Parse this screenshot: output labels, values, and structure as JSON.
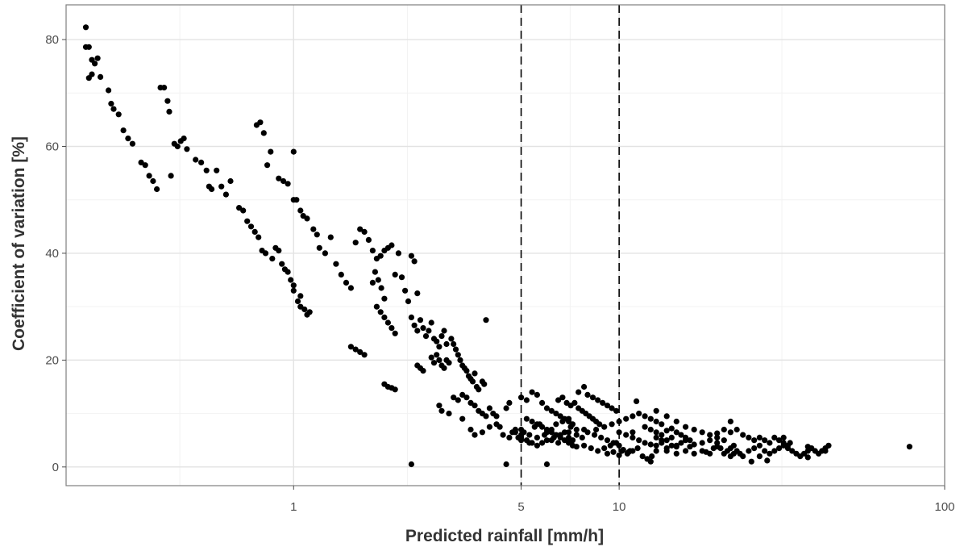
{
  "chart_data": {
    "type": "scatter",
    "xlabel": "Predicted rainfall [mm/h]",
    "ylabel": "Coefficient of variation [%]",
    "x_scale": "log10",
    "xlim": [
      0.2,
      100
    ],
    "ylim": [
      -3.5,
      86.5
    ],
    "x_ticks": [
      1,
      5,
      10,
      100
    ],
    "x_tick_labels": [
      "1",
      "5",
      "10",
      "100"
    ],
    "y_ticks": [
      0,
      20,
      40,
      60,
      80
    ],
    "y_tick_labels": [
      "0",
      "20",
      "40",
      "60",
      "80"
    ],
    "reference_lines_x": [
      5,
      10
    ],
    "grid": true,
    "point_color": "#000000",
    "points": [
      [
        0.23,
        82.3
      ],
      [
        0.23,
        78.6
      ],
      [
        0.235,
        78.6
      ],
      [
        0.24,
        76.2
      ],
      [
        0.245,
        75.5
      ],
      [
        0.24,
        73.5
      ],
      [
        0.235,
        72.8
      ],
      [
        0.25,
        76.5
      ],
      [
        0.255,
        73.0
      ],
      [
        0.27,
        70.5
      ],
      [
        0.275,
        68.0
      ],
      [
        0.28,
        67.0
      ],
      [
        0.29,
        66.0
      ],
      [
        0.3,
        63.0
      ],
      [
        0.31,
        61.5
      ],
      [
        0.32,
        60.5
      ],
      [
        0.34,
        57.0
      ],
      [
        0.35,
        56.5
      ],
      [
        0.36,
        54.5
      ],
      [
        0.37,
        53.5
      ],
      [
        0.38,
        52.0
      ],
      [
        0.39,
        71.0
      ],
      [
        0.4,
        71.0
      ],
      [
        0.41,
        68.5
      ],
      [
        0.415,
        66.5
      ],
      [
        0.42,
        54.5
      ],
      [
        0.43,
        60.5
      ],
      [
        0.44,
        60.0
      ],
      [
        0.45,
        61.0
      ],
      [
        0.46,
        61.5
      ],
      [
        0.47,
        59.5
      ],
      [
        0.5,
        57.5
      ],
      [
        0.52,
        57.0
      ],
      [
        0.54,
        55.5
      ],
      [
        0.55,
        52.5
      ],
      [
        0.56,
        52.0
      ],
      [
        0.58,
        55.5
      ],
      [
        0.6,
        52.5
      ],
      [
        0.62,
        51.0
      ],
      [
        0.64,
        53.5
      ],
      [
        0.68,
        48.5
      ],
      [
        0.7,
        48.0
      ],
      [
        0.72,
        46.0
      ],
      [
        0.74,
        45.0
      ],
      [
        0.76,
        44.0
      ],
      [
        0.78,
        43.0
      ],
      [
        0.77,
        64.0
      ],
      [
        0.79,
        64.5
      ],
      [
        0.81,
        62.5
      ],
      [
        0.83,
        56.5
      ],
      [
        0.85,
        59.0
      ],
      [
        0.8,
        40.5
      ],
      [
        0.82,
        40.0
      ],
      [
        0.86,
        39.0
      ],
      [
        0.88,
        41.0
      ],
      [
        0.9,
        40.5
      ],
      [
        0.92,
        38.0
      ],
      [
        0.94,
        37.0
      ],
      [
        0.96,
        36.5
      ],
      [
        0.98,
        35.0
      ],
      [
        1.0,
        33.0
      ],
      [
        0.9,
        54.0
      ],
      [
        0.93,
        53.5
      ],
      [
        0.96,
        53.0
      ],
      [
        1.0,
        50.0
      ],
      [
        1.02,
        50.0
      ],
      [
        1.05,
        48.0
      ],
      [
        1.07,
        47.0
      ],
      [
        1.1,
        46.5
      ],
      [
        1.15,
        44.5
      ],
      [
        1.18,
        43.5
      ],
      [
        1.0,
        59.0
      ],
      [
        1.03,
        31.0
      ],
      [
        1.05,
        30.0
      ],
      [
        1.08,
        29.5
      ],
      [
        1.1,
        28.5
      ],
      [
        1.12,
        29.0
      ],
      [
        1.0,
        34.0
      ],
      [
        1.05,
        32.0
      ],
      [
        1.2,
        41.0
      ],
      [
        1.25,
        40.0
      ],
      [
        1.3,
        43.0
      ],
      [
        1.35,
        38.0
      ],
      [
        1.4,
        36.0
      ],
      [
        1.45,
        34.5
      ],
      [
        1.5,
        33.5
      ],
      [
        1.55,
        42.0
      ],
      [
        1.6,
        44.5
      ],
      [
        1.65,
        44.0
      ],
      [
        1.7,
        42.5
      ],
      [
        1.75,
        40.5
      ],
      [
        1.8,
        39.0
      ],
      [
        1.85,
        39.5
      ],
      [
        1.9,
        40.5
      ],
      [
        1.95,
        41.0
      ],
      [
        2.0,
        41.5
      ],
      [
        2.05,
        36.0
      ],
      [
        2.1,
        40.0
      ],
      [
        2.15,
        35.5
      ],
      [
        2.2,
        33.0
      ],
      [
        2.25,
        31.0
      ],
      [
        2.3,
        39.5
      ],
      [
        2.35,
        38.5
      ],
      [
        2.4,
        32.5
      ],
      [
        1.5,
        22.5
      ],
      [
        1.55,
        22.0
      ],
      [
        1.6,
        21.5
      ],
      [
        1.65,
        21.0
      ],
      [
        1.8,
        30.0
      ],
      [
        1.85,
        29.0
      ],
      [
        1.9,
        28.0
      ],
      [
        1.95,
        27.0
      ],
      [
        2.0,
        26.0
      ],
      [
        2.05,
        25.0
      ],
      [
        1.75,
        34.5
      ],
      [
        1.78,
        36.5
      ],
      [
        1.82,
        35.0
      ],
      [
        1.86,
        33.5
      ],
      [
        1.9,
        31.5
      ],
      [
        1.9,
        15.5
      ],
      [
        1.95,
        15.0
      ],
      [
        2.0,
        14.8
      ],
      [
        2.05,
        14.5
      ],
      [
        2.3,
        28.0
      ],
      [
        2.35,
        26.5
      ],
      [
        2.4,
        25.5
      ],
      [
        2.45,
        27.5
      ],
      [
        2.5,
        26.0
      ],
      [
        2.55,
        24.5
      ],
      [
        2.6,
        25.5
      ],
      [
        2.65,
        27.0
      ],
      [
        2.7,
        24.0
      ],
      [
        2.75,
        23.5
      ],
      [
        2.8,
        22.5
      ],
      [
        2.85,
        24.5
      ],
      [
        2.9,
        25.5
      ],
      [
        2.95,
        23.0
      ],
      [
        2.4,
        19.0
      ],
      [
        2.45,
        18.5
      ],
      [
        2.5,
        18.0
      ],
      [
        2.3,
        0.5
      ],
      [
        2.65,
        20.5
      ],
      [
        2.7,
        19.5
      ],
      [
        2.75,
        21.0
      ],
      [
        2.8,
        20.0
      ],
      [
        2.85,
        19.0
      ],
      [
        2.9,
        18.5
      ],
      [
        2.95,
        20.0
      ],
      [
        3.0,
        19.5
      ],
      [
        3.05,
        24.0
      ],
      [
        3.1,
        23.0
      ],
      [
        3.15,
        22.0
      ],
      [
        3.2,
        21.0
      ],
      [
        3.25,
        20.0
      ],
      [
        3.3,
        19.0
      ],
      [
        3.35,
        18.5
      ],
      [
        3.4,
        18.0
      ],
      [
        3.45,
        17.0
      ],
      [
        3.5,
        16.5
      ],
      [
        3.55,
        16.0
      ],
      [
        3.6,
        17.5
      ],
      [
        3.65,
        15.0
      ],
      [
        3.7,
        14.5
      ],
      [
        3.8,
        16.0
      ],
      [
        3.85,
        15.5
      ],
      [
        3.9,
        27.5
      ],
      [
        3.1,
        13.0
      ],
      [
        3.2,
        12.5
      ],
      [
        3.3,
        13.5
      ],
      [
        3.4,
        13.0
      ],
      [
        3.5,
        12.0
      ],
      [
        3.6,
        11.5
      ],
      [
        3.7,
        10.5
      ],
      [
        3.8,
        10.0
      ],
      [
        3.9,
        9.5
      ],
      [
        4.0,
        11.0
      ],
      [
        2.8,
        11.5
      ],
      [
        2.85,
        10.5
      ],
      [
        4.1,
        10.0
      ],
      [
        4.2,
        9.5
      ],
      [
        4.3,
        7.5
      ],
      [
        4.5,
        11.0
      ],
      [
        4.6,
        12.0
      ],
      [
        4.7,
        6.5
      ],
      [
        4.8,
        7.0
      ],
      [
        4.9,
        5.5
      ],
      [
        5.0,
        6.0
      ],
      [
        4.5,
        0.5
      ],
      [
        5.0,
        13.0
      ],
      [
        5.2,
        12.5
      ],
      [
        5.4,
        14.0
      ],
      [
        5.6,
        13.5
      ],
      [
        5.8,
        12.0
      ],
      [
        6.0,
        11.0
      ],
      [
        6.2,
        10.5
      ],
      [
        6.4,
        10.0
      ],
      [
        6.6,
        9.5
      ],
      [
        6.8,
        9.0
      ],
      [
        7.0,
        8.5
      ],
      [
        7.2,
        8.0
      ],
      [
        5.2,
        9.0
      ],
      [
        5.4,
        8.5
      ],
      [
        5.6,
        8.0
      ],
      [
        5.8,
        7.5
      ],
      [
        6.0,
        7.0
      ],
      [
        6.2,
        6.5
      ],
      [
        6.4,
        6.0
      ],
      [
        6.6,
        5.5
      ],
      [
        6.8,
        5.0
      ],
      [
        7.0,
        4.5
      ],
      [
        7.2,
        4.0
      ],
      [
        7.4,
        3.8
      ],
      [
        6.5,
        12.5
      ],
      [
        6.7,
        13.0
      ],
      [
        6.9,
        12.0
      ],
      [
        7.1,
        11.5
      ],
      [
        7.3,
        12.0
      ],
      [
        7.5,
        11.0
      ],
      [
        7.7,
        10.5
      ],
      [
        7.9,
        10.0
      ],
      [
        8.1,
        9.5
      ],
      [
        8.3,
        9.0
      ],
      [
        8.5,
        8.5
      ],
      [
        8.7,
        8.0
      ],
      [
        7.5,
        14.0
      ],
      [
        7.8,
        15.0
      ],
      [
        8.0,
        13.5
      ],
      [
        8.3,
        13.0
      ],
      [
        8.6,
        12.5
      ],
      [
        8.9,
        12.0
      ],
      [
        9.2,
        11.5
      ],
      [
        9.5,
        11.0
      ],
      [
        9.8,
        10.5
      ],
      [
        6.0,
        0.5
      ],
      [
        7.0,
        5.5
      ],
      [
        7.2,
        5.0
      ],
      [
        7.8,
        7.0
      ],
      [
        8.0,
        6.5
      ],
      [
        8.4,
        6.0
      ],
      [
        8.8,
        5.5
      ],
      [
        9.2,
        5.0
      ],
      [
        9.6,
        4.5
      ],
      [
        10.0,
        4.0
      ],
      [
        8.5,
        7.0
      ],
      [
        9.0,
        7.5
      ],
      [
        9.5,
        8.0
      ],
      [
        10.0,
        8.5
      ],
      [
        10.5,
        9.0
      ],
      [
        11.0,
        9.5
      ],
      [
        11.5,
        10.0
      ],
      [
        12.0,
        9.5
      ],
      [
        12.5,
        9.0
      ],
      [
        13.0,
        8.5
      ],
      [
        13.5,
        8.0
      ],
      [
        10.0,
        6.5
      ],
      [
        10.5,
        6.0
      ],
      [
        11.0,
        5.5
      ],
      [
        11.5,
        5.0
      ],
      [
        12.0,
        4.5
      ],
      [
        12.5,
        4.2
      ],
      [
        13.0,
        4.0
      ],
      [
        13.5,
        4.5
      ],
      [
        14.0,
        5.0
      ],
      [
        14.5,
        5.5
      ],
      [
        12.0,
        7.5
      ],
      [
        12.5,
        7.0
      ],
      [
        13.0,
        6.5
      ],
      [
        13.5,
        6.0
      ],
      [
        14.0,
        6.8
      ],
      [
        14.5,
        7.2
      ],
      [
        15.0,
        6.5
      ],
      [
        15.5,
        6.0
      ],
      [
        16.0,
        5.5
      ],
      [
        16.5,
        5.0
      ],
      [
        13.0,
        10.5
      ],
      [
        14.0,
        9.5
      ],
      [
        15.0,
        8.5
      ],
      [
        16.0,
        7.5
      ],
      [
        17.0,
        7.0
      ],
      [
        18.0,
        6.5
      ],
      [
        19.0,
        6.0
      ],
      [
        20.0,
        6.3
      ],
      [
        21.0,
        7.0
      ],
      [
        22.0,
        8.5
      ],
      [
        15.0,
        3.8
      ],
      [
        15.5,
        4.5
      ],
      [
        16.0,
        5.0
      ],
      [
        17.0,
        4.2
      ],
      [
        18.0,
        4.5
      ],
      [
        19.0,
        5.0
      ],
      [
        20.0,
        5.5
      ],
      [
        21.0,
        5.0
      ],
      [
        22.0,
        6.5
      ],
      [
        23.0,
        7.0
      ],
      [
        24.0,
        6.0
      ],
      [
        25.0,
        5.5
      ],
      [
        26.0,
        5.0
      ],
      [
        27.0,
        5.5
      ],
      [
        28.0,
        5.0
      ],
      [
        29.0,
        4.5
      ],
      [
        30.0,
        5.5
      ],
      [
        31.0,
        5.0
      ],
      [
        32.0,
        4.5
      ],
      [
        33.0,
        4.0
      ],
      [
        3.0,
        10.0
      ],
      [
        3.3,
        9.0
      ],
      [
        3.5,
        7.0
      ],
      [
        3.6,
        6.0
      ],
      [
        3.8,
        6.5
      ],
      [
        4.0,
        7.5
      ],
      [
        4.2,
        8.0
      ],
      [
        4.4,
        6.0
      ],
      [
        4.6,
        5.5
      ],
      [
        4.8,
        6.5
      ],
      [
        5.0,
        5.0
      ],
      [
        5.3,
        4.5
      ],
      [
        5.6,
        5.5
      ],
      [
        5.9,
        6.0
      ],
      [
        6.2,
        5.0
      ],
      [
        6.5,
        4.5
      ],
      [
        6.8,
        6.5
      ],
      [
        7.1,
        7.5
      ],
      [
        7.4,
        6.0
      ],
      [
        7.7,
        5.5
      ],
      [
        5.0,
        7.0
      ],
      [
        5.1,
        6.5
      ],
      [
        5.3,
        6.0
      ],
      [
        5.5,
        7.5
      ],
      [
        5.7,
        8.0
      ],
      [
        6.0,
        6.5
      ],
      [
        6.2,
        7.0
      ],
      [
        6.4,
        8.0
      ],
      [
        6.7,
        8.5
      ],
      [
        7.0,
        9.0
      ],
      [
        5.0,
        5.5
      ],
      [
        5.2,
        5.0
      ],
      [
        5.4,
        4.5
      ],
      [
        5.6,
        4.0
      ],
      [
        5.8,
        4.5
      ],
      [
        6.0,
        5.0
      ],
      [
        6.3,
        5.5
      ],
      [
        6.6,
        6.0
      ],
      [
        7.0,
        6.5
      ],
      [
        7.4,
        7.0
      ],
      [
        7.8,
        4.0
      ],
      [
        8.2,
        3.5
      ],
      [
        8.6,
        3.0
      ],
      [
        9.0,
        3.5
      ],
      [
        9.4,
        4.0
      ],
      [
        9.8,
        4.5
      ],
      [
        10.2,
        3.0
      ],
      [
        10.6,
        2.5
      ],
      [
        11.0,
        3.0
      ],
      [
        11.4,
        3.5
      ],
      [
        11.8,
        2.0
      ],
      [
        12.2,
        1.5
      ],
      [
        12.6,
        2.0
      ],
      [
        13.0,
        3.0
      ],
      [
        14.0,
        3.5
      ],
      [
        15.0,
        4.0
      ],
      [
        16.0,
        3.0
      ],
      [
        17.0,
        2.5
      ],
      [
        18.0,
        3.0
      ],
      [
        19.0,
        2.5
      ],
      [
        19.5,
        3.5
      ],
      [
        20.0,
        4.5
      ],
      [
        20.5,
        3.5
      ],
      [
        21.0,
        2.5
      ],
      [
        21.5,
        3.0
      ],
      [
        22.0,
        3.5
      ],
      [
        22.5,
        4.0
      ],
      [
        23.0,
        3.0
      ],
      [
        23.5,
        2.5
      ],
      [
        24.0,
        2.0
      ],
      [
        25.0,
        3.0
      ],
      [
        26.0,
        3.5
      ],
      [
        27.0,
        4.0
      ],
      [
        28.0,
        3.0
      ],
      [
        29.0,
        2.5
      ],
      [
        30.0,
        3.0
      ],
      [
        31.0,
        3.5
      ],
      [
        32.0,
        4.0
      ],
      [
        33.0,
        3.5
      ],
      [
        34.0,
        3.0
      ],
      [
        35.0,
        2.5
      ],
      [
        36.0,
        2.0
      ],
      [
        37.0,
        2.5
      ],
      [
        38.0,
        3.0
      ],
      [
        39.0,
        3.5
      ],
      [
        40.0,
        3.0
      ],
      [
        41.0,
        2.5
      ],
      [
        42.0,
        3.0
      ],
      [
        43.0,
        3.5
      ],
      [
        44.0,
        4.0
      ],
      [
        9.2,
        2.5
      ],
      [
        9.6,
        2.8
      ],
      [
        10.0,
        2.2
      ],
      [
        10.3,
        3.2
      ],
      [
        10.7,
        2.8
      ],
      [
        11.0,
        6.5
      ],
      [
        11.3,
        12.3
      ],
      [
        10.8,
        3.0
      ],
      [
        12.5,
        1.0
      ],
      [
        13.0,
        5.5
      ],
      [
        13.5,
        5.0
      ],
      [
        14.0,
        3.0
      ],
      [
        14.5,
        4.0
      ],
      [
        15.0,
        2.5
      ],
      [
        16.5,
        3.8
      ],
      [
        18.5,
        2.8
      ],
      [
        20.0,
        3.8
      ],
      [
        22.0,
        2.0
      ],
      [
        22.5,
        2.5
      ],
      [
        25.5,
        1.0
      ],
      [
        27.0,
        2.0
      ],
      [
        28.5,
        1.2
      ],
      [
        32.0,
        5.5
      ],
      [
        33.5,
        4.5
      ],
      [
        38.0,
        3.8
      ],
      [
        38.0,
        1.8
      ],
      [
        43.0,
        3.0
      ],
      [
        78.0,
        3.8
      ]
    ]
  }
}
